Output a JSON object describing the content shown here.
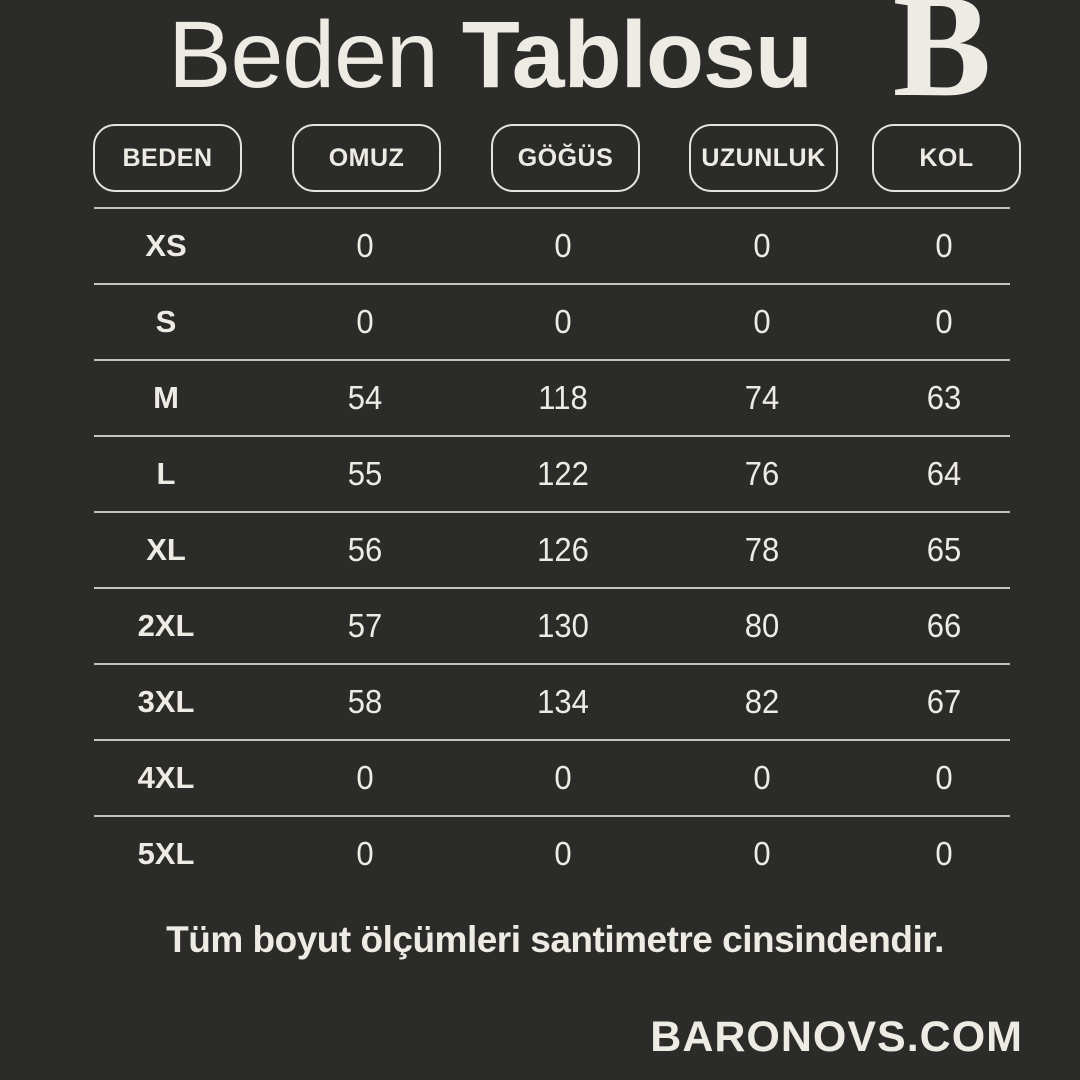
{
  "title": {
    "regular": "Beden",
    "bold": "Tablosu"
  },
  "logo": {
    "letter": "B"
  },
  "table": {
    "headers": [
      "BEDEN",
      "OMUZ",
      "GÖĞÜS",
      "UZUNLUK",
      "KOL"
    ],
    "rows": [
      {
        "size": "XS",
        "values": [
          "0",
          "0",
          "0",
          "0"
        ]
      },
      {
        "size": "S",
        "values": [
          "0",
          "0",
          "0",
          "0"
        ]
      },
      {
        "size": "M",
        "values": [
          "54",
          "118",
          "74",
          "63"
        ]
      },
      {
        "size": "L",
        "values": [
          "55",
          "122",
          "76",
          "64"
        ]
      },
      {
        "size": "XL",
        "values": [
          "56",
          "126",
          "78",
          "65"
        ]
      },
      {
        "size": "2XL",
        "values": [
          "57",
          "130",
          "80",
          "66"
        ]
      },
      {
        "size": "3XL",
        "values": [
          "58",
          "134",
          "82",
          "67"
        ]
      },
      {
        "size": "4XL",
        "values": [
          "0",
          "0",
          "0",
          "0"
        ]
      },
      {
        "size": "5XL",
        "values": [
          "0",
          "0",
          "0",
          "0"
        ]
      }
    ]
  },
  "footer": {
    "note": "Tüm boyut ölçümleri santimetre cinsindendir.",
    "website": "BARONOVS.COM"
  },
  "colors": {
    "background": "#2b2b29",
    "text": "#edebe4",
    "line": "#c7c5bf"
  },
  "chart_data": {
    "type": "table",
    "title": "Beden Tablosu",
    "columns": [
      "BEDEN",
      "OMUZ",
      "GÖĞÜS",
      "UZUNLUK",
      "KOL"
    ],
    "rows": [
      [
        "XS",
        0,
        0,
        0,
        0
      ],
      [
        "S",
        0,
        0,
        0,
        0
      ],
      [
        "M",
        54,
        118,
        74,
        63
      ],
      [
        "L",
        55,
        122,
        76,
        64
      ],
      [
        "XL",
        56,
        126,
        78,
        65
      ],
      [
        "2XL",
        57,
        130,
        80,
        66
      ],
      [
        "3XL",
        58,
        134,
        82,
        67
      ],
      [
        "4XL",
        0,
        0,
        0,
        0
      ],
      [
        "5XL",
        0,
        0,
        0,
        0
      ]
    ],
    "units": "cm",
    "note": "Tüm boyut ölçümleri santimetre cinsindendir.",
    "layout": {
      "grid": "horizontal-rules-only",
      "header_style": "rounded-outline-pills"
    }
  }
}
